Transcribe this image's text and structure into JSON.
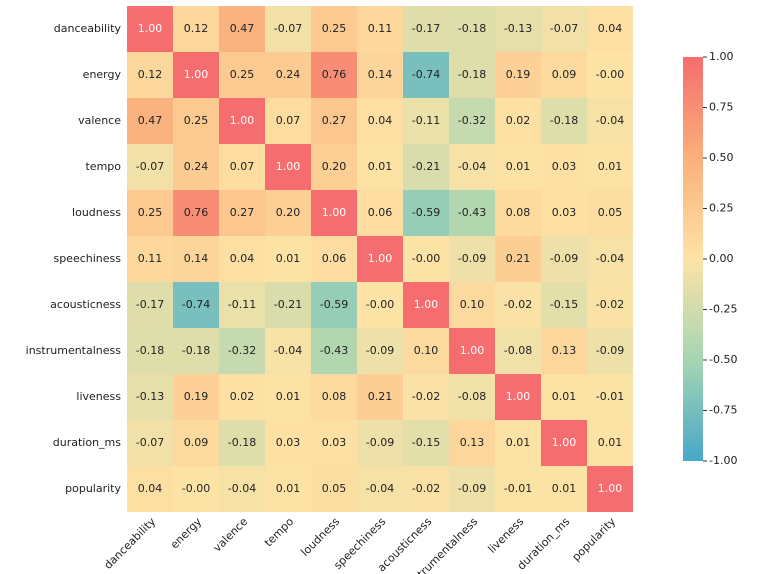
{
  "chart_data": {
    "type": "heatmap",
    "categories": [
      "danceability",
      "energy",
      "valence",
      "tempo",
      "loudness",
      "speechiness",
      "acousticness",
      "instrumentalness",
      "liveness",
      "duration_ms",
      "popularity"
    ],
    "values": [
      [
        1.0,
        0.12,
        0.47,
        -0.07,
        0.25,
        0.11,
        -0.17,
        -0.18,
        -0.13,
        -0.07,
        0.04
      ],
      [
        0.12,
        1.0,
        0.25,
        0.24,
        0.76,
        0.14,
        -0.74,
        -0.18,
        0.19,
        0.09,
        0
      ],
      [
        0.47,
        0.25,
        1.0,
        0.07,
        0.27,
        0.04,
        -0.11,
        -0.32,
        0.02,
        -0.18,
        -0.04
      ],
      [
        -0.07,
        0.24,
        0.07,
        1.0,
        0.2,
        0.01,
        -0.21,
        -0.04,
        0.01,
        0.03,
        0.01
      ],
      [
        0.25,
        0.76,
        0.27,
        0.2,
        1.0,
        0.06,
        -0.59,
        -0.43,
        0.08,
        0.03,
        0.05
      ],
      [
        0.11,
        0.14,
        0.04,
        0.01,
        0.06,
        1.0,
        0,
        -0.09,
        0.21,
        -0.09,
        -0.04
      ],
      [
        -0.17,
        -0.74,
        -0.11,
        -0.21,
        -0.59,
        0,
        1.0,
        0.1,
        -0.02,
        -0.15,
        -0.02
      ],
      [
        -0.18,
        -0.18,
        -0.32,
        -0.04,
        -0.43,
        -0.09,
        0.1,
        1.0,
        -0.08,
        0.13,
        -0.09
      ],
      [
        -0.13,
        0.19,
        0.02,
        0.01,
        0.08,
        0.21,
        -0.02,
        -0.08,
        1.0,
        0.01,
        -0.01
      ],
      [
        -0.07,
        0.09,
        -0.18,
        0.03,
        0.03,
        -0.09,
        -0.15,
        0.13,
        0.01,
        1.0,
        0.01
      ],
      [
        0.04,
        0,
        -0.04,
        0.01,
        0.05,
        -0.04,
        -0.02,
        -0.09,
        -0.01,
        0.01,
        1.0
      ]
    ],
    "value_labels": [
      [
        "1.00",
        "0.12",
        "0.47",
        "-0.07",
        "0.25",
        "0.11",
        "-0.17",
        "-0.18",
        "-0.13",
        "-0.07",
        "0.04"
      ],
      [
        "0.12",
        "1.00",
        "0.25",
        "0.24",
        "0.76",
        "0.14",
        "-0.74",
        "-0.18",
        "0.19",
        "0.09",
        "-0.00"
      ],
      [
        "0.47",
        "0.25",
        "1.00",
        "0.07",
        "0.27",
        "0.04",
        "-0.11",
        "-0.32",
        "0.02",
        "-0.18",
        "-0.04"
      ],
      [
        "-0.07",
        "0.24",
        "0.07",
        "1.00",
        "0.20",
        "0.01",
        "-0.21",
        "-0.04",
        "0.01",
        "0.03",
        "0.01"
      ],
      [
        "0.25",
        "0.76",
        "0.27",
        "0.20",
        "1.00",
        "0.06",
        "-0.59",
        "-0.43",
        "0.08",
        "0.03",
        "0.05"
      ],
      [
        "0.11",
        "0.14",
        "0.04",
        "0.01",
        "0.06",
        "1.00",
        "-0.00",
        "-0.09",
        "0.21",
        "-0.09",
        "-0.04"
      ],
      [
        "-0.17",
        "-0.74",
        "-0.11",
        "-0.21",
        "-0.59",
        "-0.00",
        "1.00",
        "0.10",
        "-0.02",
        "-0.15",
        "-0.02"
      ],
      [
        "-0.18",
        "-0.18",
        "-0.32",
        "-0.04",
        "-0.43",
        "-0.09",
        "0.10",
        "1.00",
        "-0.08",
        "0.13",
        "-0.09"
      ],
      [
        "-0.13",
        "0.19",
        "0.02",
        "0.01",
        "0.08",
        "0.21",
        "-0.02",
        "-0.08",
        "1.00",
        "0.01",
        "-0.01"
      ],
      [
        "-0.07",
        "0.09",
        "-0.18",
        "0.03",
        "0.03",
        "-0.09",
        "-0.15",
        "0.13",
        "0.01",
        "1.00",
        "0.01"
      ],
      [
        "0.04",
        "-0.00",
        "-0.04",
        "0.01",
        "0.05",
        "-0.04",
        "-0.02",
        "-0.09",
        "-0.01",
        "0.01",
        "1.00"
      ]
    ],
    "colormap": [
      "#48a7ca",
      "#a6d5b2",
      "#fde3a6",
      "#fab07c",
      "#f56d6f"
    ],
    "clim": [
      -1,
      1
    ],
    "cticks": [
      {
        "value": -1,
        "label": "-1.00"
      },
      {
        "value": -0.75,
        "label": "-0.75"
      },
      {
        "value": -0.5,
        "label": "-0.50"
      },
      {
        "value": -0.25,
        "label": "-0.25"
      },
      {
        "value": 0,
        "label": "0.00"
      },
      {
        "value": 0.25,
        "label": "0.25"
      },
      {
        "value": 0.5,
        "label": "0.50"
      },
      {
        "value": 0.75,
        "label": "0.75"
      },
      {
        "value": 1,
        "label": "1.00"
      }
    ]
  }
}
